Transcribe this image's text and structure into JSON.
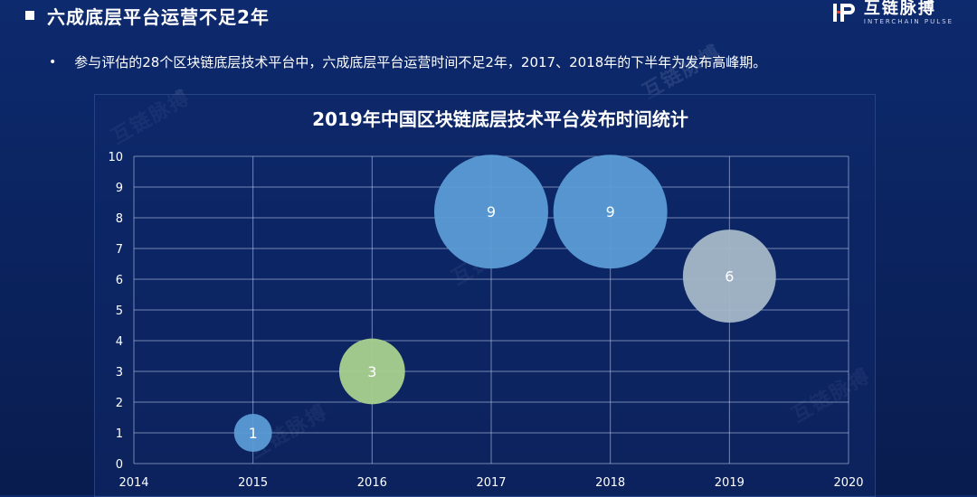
{
  "header": {
    "title": "六成底层平台运营不足2年",
    "logo_cn": "互链脉搏",
    "logo_en": "INTERCHAIN PULSE"
  },
  "bullet": {
    "text": "参与评估的28个区块链底层技术平台中，六成底层平台运营时间不足2年，2017、2018年的下半年为发布高峰期。"
  },
  "watermark_text": "互链脉搏",
  "chart_data": {
    "type": "scatter",
    "title": "2019年中国区块链底层技术平台发布时间统计",
    "xlabel": "",
    "ylabel": "",
    "xlim": [
      2014,
      2020
    ],
    "ylim": [
      0,
      10
    ],
    "xticks": [
      "2014",
      "2015",
      "2016",
      "2017",
      "2018",
      "2019",
      "2020"
    ],
    "yticks": [
      "0",
      "1",
      "2",
      "3",
      "4",
      "5",
      "6",
      "7",
      "8",
      "9",
      "10"
    ],
    "grid": true,
    "points": [
      {
        "x": 2015,
        "y": 1,
        "size": 1,
        "label": "1",
        "color": "#5b9bd5"
      },
      {
        "x": 2016,
        "y": 3,
        "size": 3,
        "label": "3",
        "color": "#a9d18e"
      },
      {
        "x": 2017,
        "y": 8.2,
        "size": 9,
        "label": "9",
        "color": "#5b9bd5"
      },
      {
        "x": 2018,
        "y": 8.2,
        "size": 9,
        "label": "9",
        "color": "#5b9bd5"
      },
      {
        "x": 2019,
        "y": 6.1,
        "size": 6,
        "label": "6",
        "color": "#a5b8c8"
      }
    ]
  }
}
